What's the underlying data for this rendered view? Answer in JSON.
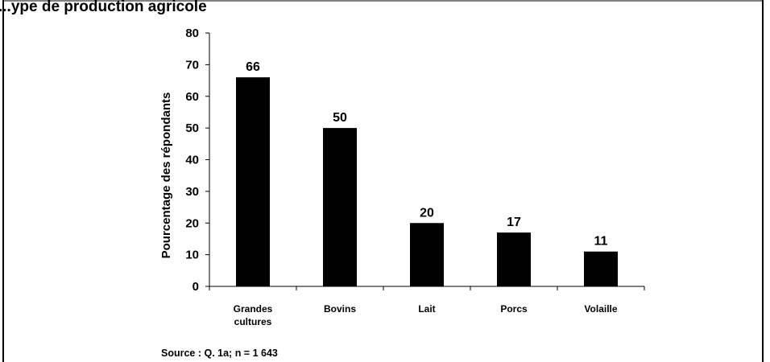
{
  "heading": "...ype de production agricole",
  "chart_data": {
    "type": "bar",
    "categories": [
      [
        "Grandes",
        "cultures"
      ],
      [
        "Bovins"
      ],
      [
        "Lait"
      ],
      [
        "Porcs"
      ],
      [
        "Volaille"
      ]
    ],
    "values": [
      66,
      50,
      20,
      17,
      11
    ],
    "data_labels": [
      "66",
      "50",
      "20",
      "17",
      "11"
    ],
    "title": "",
    "xlabel": "",
    "ylabel": "Pourcentage des répondants",
    "ylim": [
      0,
      80
    ],
    "yticks": [
      0,
      10,
      20,
      30,
      40,
      50,
      60,
      70,
      80
    ],
    "bar_color": "#000000",
    "grid": false,
    "legend": "none"
  },
  "source": "Source : Q. 1a; n = 1 643"
}
